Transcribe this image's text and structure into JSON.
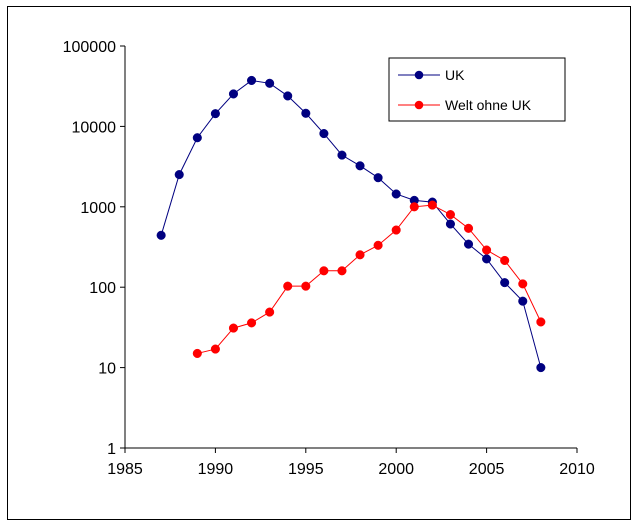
{
  "chart_data": {
    "type": "line",
    "title": "",
    "xlabel": "",
    "ylabel": "",
    "x_axis": {
      "range": [
        1985,
        2010
      ],
      "ticks": [
        1985,
        1990,
        1995,
        2000,
        2005,
        2010
      ],
      "tick_labels": [
        "1985",
        "1990",
        "1995",
        "2000",
        "2005",
        "2010"
      ]
    },
    "y_axis": {
      "scale": "log",
      "range": [
        1,
        100000
      ],
      "ticks": [
        1,
        10,
        100,
        1000,
        10000,
        100000
      ],
      "tick_labels": [
        "1",
        "10",
        "100",
        "1000",
        "10000",
        "100000"
      ]
    },
    "grid": false,
    "legend": {
      "position": "top-right",
      "border": true
    },
    "series": [
      {
        "name": "UK",
        "color": "#000080",
        "marker": "circle",
        "x": [
          1987,
          1988,
          1989,
          1990,
          1991,
          1992,
          1993,
          1994,
          1995,
          1996,
          1997,
          1998,
          1999,
          2000,
          2001,
          2002,
          2003,
          2004,
          2005,
          2006,
          2007,
          2008
        ],
        "y": [
          442,
          2514,
          7228,
          14407,
          25359,
          37280,
          34370,
          23945,
          14562,
          8149,
          4393,
          3235,
          2301,
          1443,
          1202,
          1144,
          611,
          343,
          225,
          114,
          67,
          10
        ]
      },
      {
        "name": "Welt ohne UK",
        "color": "#ff0000",
        "marker": "circle",
        "x": [
          1989,
          1990,
          1991,
          1992,
          1993,
          1994,
          1995,
          1996,
          1997,
          1998,
          1999,
          2000,
          2001,
          2002,
          2003,
          2004,
          2005,
          2006,
          2007,
          2008
        ],
        "y": [
          15,
          17,
          31,
          36,
          49,
          103,
          103,
          160,
          160,
          253,
          332,
          514,
          1000,
          1050,
          800,
          540,
          290,
          215,
          110,
          37
        ]
      }
    ]
  }
}
